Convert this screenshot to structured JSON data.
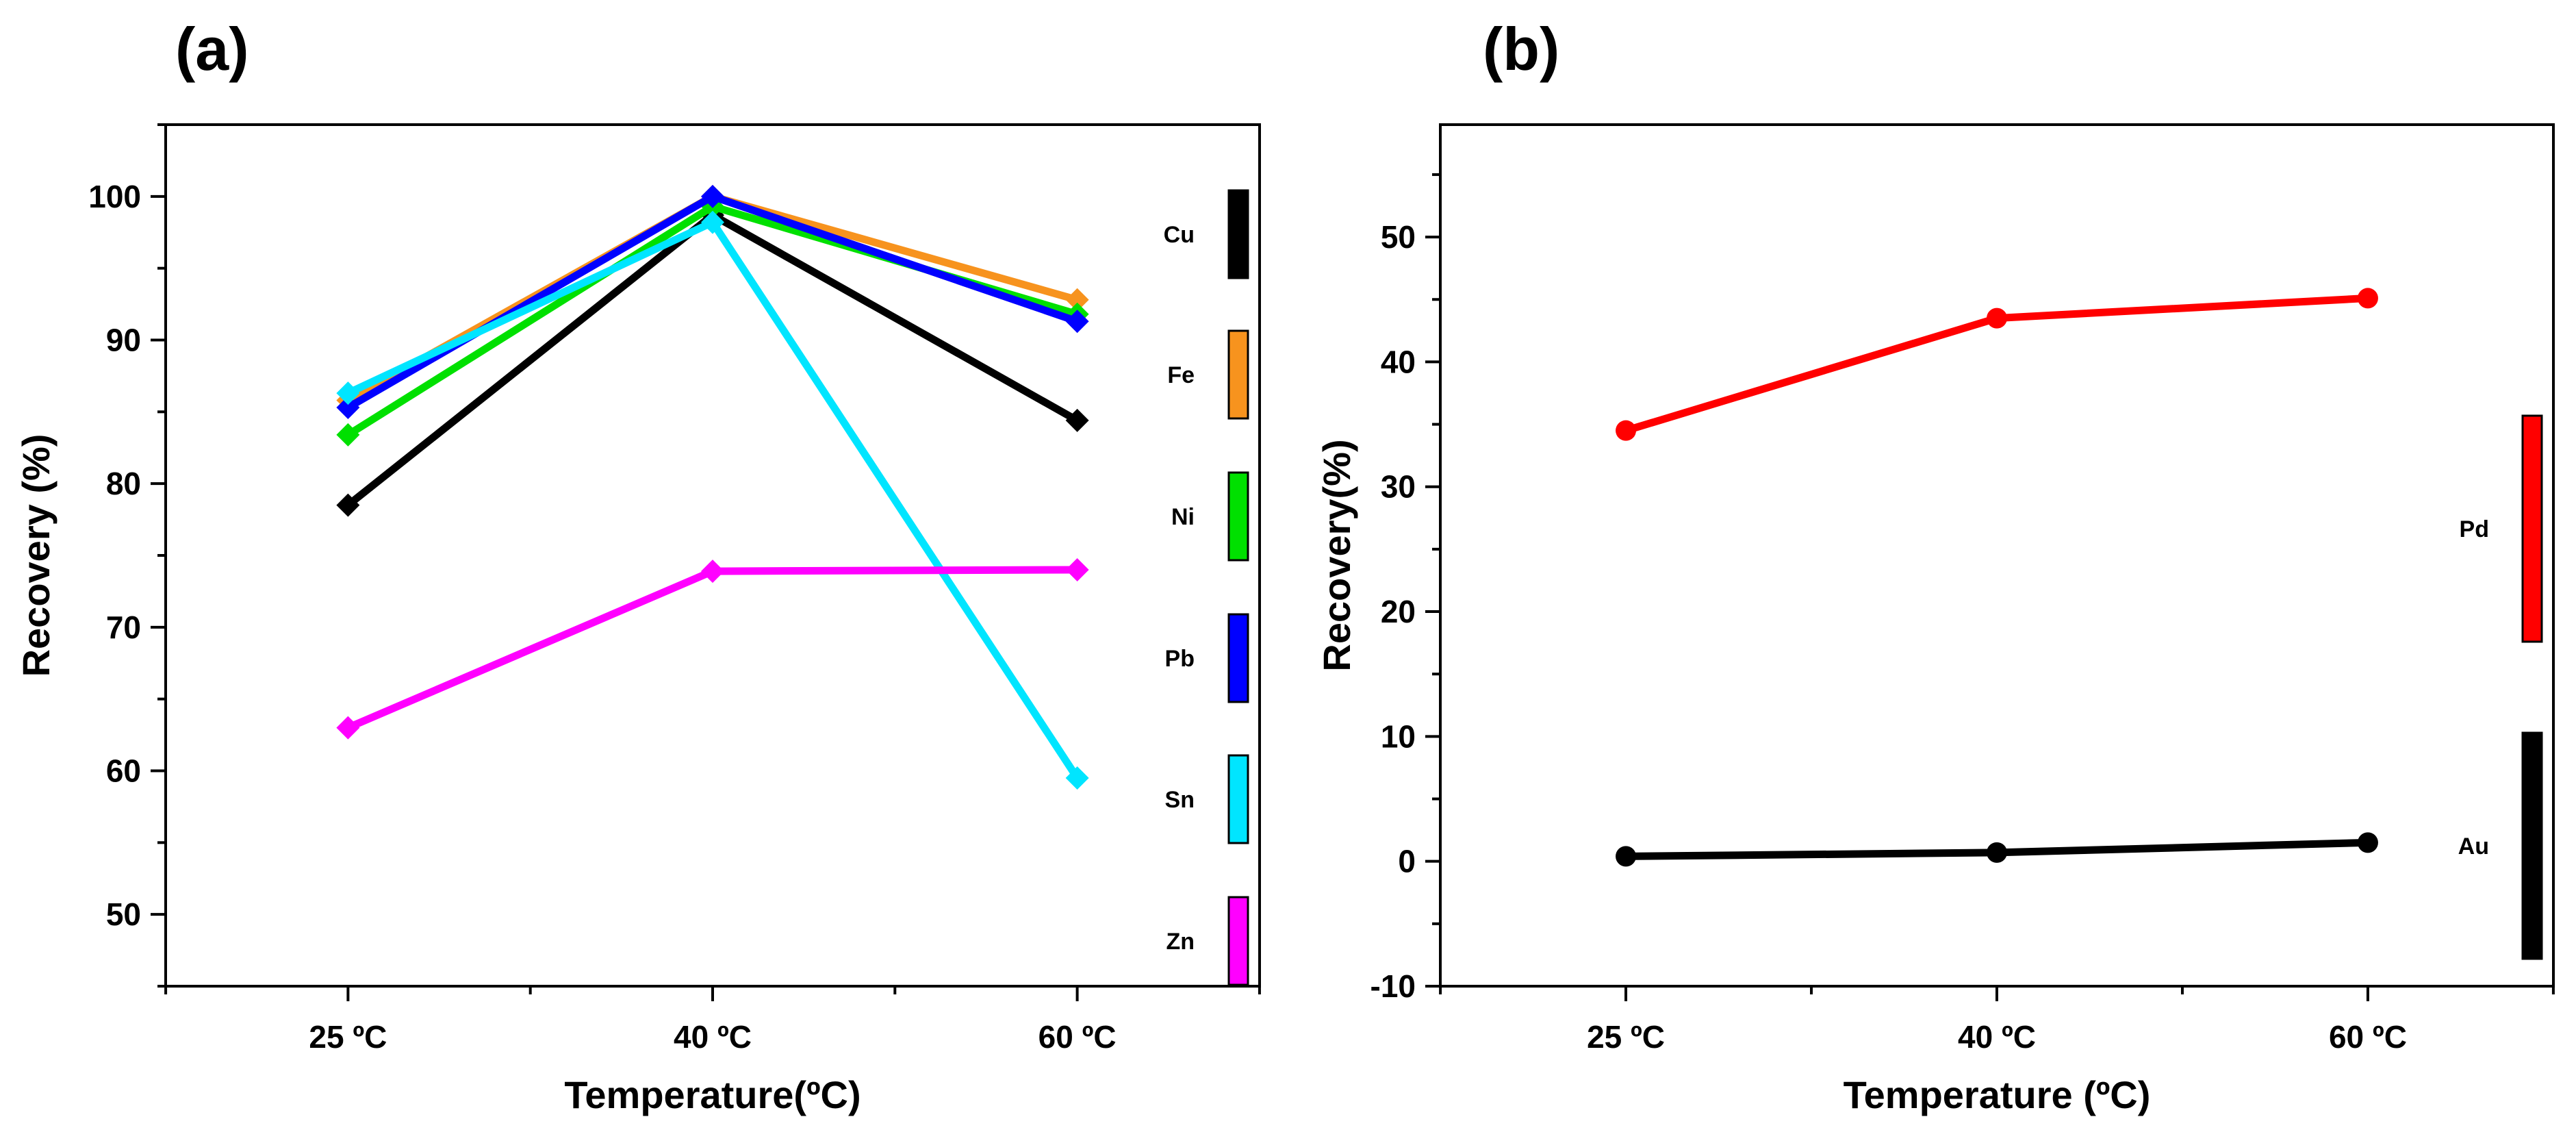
{
  "chart_data": [
    {
      "type": "line",
      "panel_label": "(a)",
      "title": "",
      "xlabel": "Temperature(ºC)",
      "ylabel": "Recovery (%)",
      "categories": [
        "25 ºC",
        "40 ºC",
        "60 ºC"
      ],
      "ylim": [
        45,
        105
      ],
      "yticks": [
        50,
        60,
        70,
        80,
        90,
        100
      ],
      "ytick_labels": [
        "50",
        "60",
        "70",
        "80",
        "90",
        "100"
      ],
      "grid": false,
      "legend_position": "right",
      "marker": "diamond",
      "series": [
        {
          "name": "Cu",
          "color": "#000000",
          "values": [
            78.5,
            98.7,
            84.4
          ]
        },
        {
          "name": "Fe",
          "color": "#f7931e",
          "values": [
            85.8,
            100.0,
            92.8
          ]
        },
        {
          "name": "Ni",
          "color": "#00e000",
          "values": [
            83.4,
            99.3,
            91.8
          ]
        },
        {
          "name": "Pb",
          "color": "#0000ff",
          "values": [
            85.3,
            100.0,
            91.3
          ]
        },
        {
          "name": "Sn",
          "color": "#00e5ff",
          "values": [
            86.3,
            98.2,
            59.5
          ]
        },
        {
          "name": "Zn",
          "color": "#ff00ff",
          "values": [
            63.0,
            73.9,
            74.0
          ]
        }
      ]
    },
    {
      "type": "line",
      "panel_label": "(b)",
      "title": "",
      "xlabel": "Temperature (ºC)",
      "ylabel": "Recovery(%)",
      "categories": [
        "25 ºC",
        "40 ºC",
        "60 ºC"
      ],
      "ylim": [
        -10,
        59
      ],
      "yticks": [
        -10,
        0,
        10,
        20,
        30,
        40,
        50
      ],
      "ytick_labels": [
        "-10",
        "0",
        "10",
        "20",
        "30",
        "40",
        "50"
      ],
      "grid": false,
      "legend_position": "right",
      "marker": "circle",
      "series": [
        {
          "name": "Pd",
          "color": "#ff0000",
          "values": [
            34.5,
            43.5,
            45.1
          ]
        },
        {
          "name": "Au",
          "color": "#000000",
          "values": [
            0.4,
            0.7,
            1.5
          ]
        }
      ]
    }
  ]
}
